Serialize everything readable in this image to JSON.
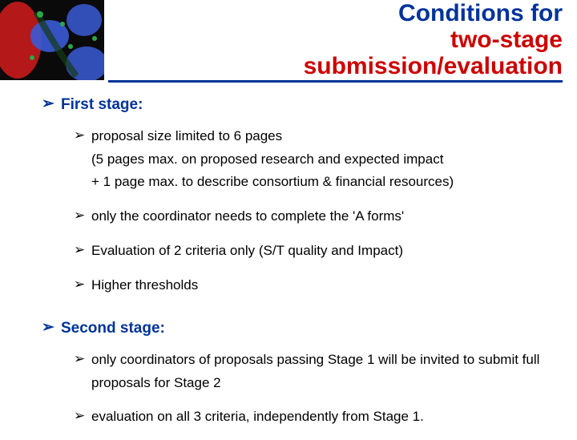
{
  "title": {
    "line1_blue": "Conditions for",
    "line2_red": "two-stage",
    "line3_red": "submission/evaluation",
    "title_blue_color": "#003399",
    "title_red_color": "#cc0000",
    "underline_color": "#003399"
  },
  "thumb": {
    "colors": [
      "#0a0a0a",
      "#c81a1a",
      "#3a5ad6",
      "#2aa84a",
      "#153a15"
    ]
  },
  "content": {
    "stage1": {
      "heading": "First stage:",
      "bullets": [
        "proposal size limited to 6 pages\n(5 pages max. on proposed research and expected impact\n + 1 page max. to describe consortium & financial resources)",
        "only the coordinator needs to complete the 'A forms'",
        "Evaluation of 2 criteria only (S/T quality and Impact)",
        "Higher thresholds"
      ]
    },
    "stage2": {
      "heading": "Second stage:",
      "bullets": [
        "only coordinators of proposals passing Stage 1 will be invited to submit full proposals for Stage 2",
        "evaluation on all 3 criteria, independently from Stage 1."
      ]
    }
  },
  "typography": {
    "title_fontsize": 30,
    "main_bullet_fontsize": 19,
    "sub_bullet_fontsize": 17,
    "main_color": "#003399",
    "sub_color": "#000000",
    "bullet_glyph": "➢"
  }
}
